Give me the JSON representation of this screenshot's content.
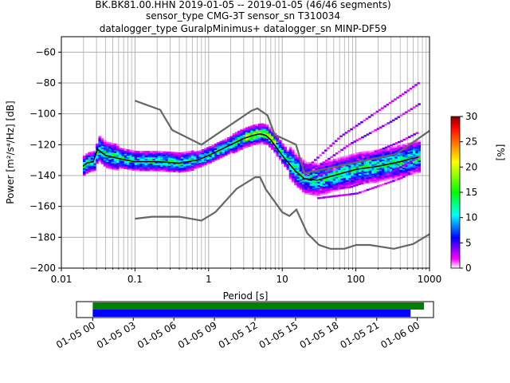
{
  "title": {
    "line1": "BK.BK81.00.HHN   2019-01-05 -- 2019-01-05  (46/46 segments)",
    "line2": "sensor_type CMG-3T sensor_sn T310034",
    "line3": "datalogger_type GuralpMinimus+ datalogger_sn MINP-DF59"
  },
  "chart_data": [
    {
      "type": "heatmap",
      "name": "ppsd",
      "xlabel": "Period [s]",
      "ylabel": "Power [m²/s⁴/Hz] [dB]",
      "xscale": "log",
      "xlim": [
        0.01,
        1000
      ],
      "ylim": [
        -200,
        -50
      ],
      "x_ticks": [
        0.01,
        0.1,
        1,
        10,
        100,
        1000
      ],
      "x_tick_labels": [
        "0.01",
        "0.1",
        "1",
        "10",
        "100",
        "1000"
      ],
      "y_ticks": [
        -200,
        -180,
        -160,
        -140,
        -120,
        -100,
        -80,
        -60
      ],
      "grid": true,
      "colorbar": {
        "label": "[%]",
        "range": [
          0,
          30
        ],
        "ticks": [
          0,
          5,
          10,
          15,
          20,
          25,
          30
        ],
        "colors": [
          "#ffffff",
          "#ff00ff",
          "#0000ff",
          "#00ffff",
          "#00ff00",
          "#ffff00",
          "#ff0000",
          "#800000"
        ]
      },
      "mode_curve": [
        [
          0.0196,
          -134
        ],
        [
          0.022,
          -132
        ],
        [
          0.027,
          -131
        ],
        [
          0.031,
          -123
        ],
        [
          0.04,
          -127
        ],
        [
          0.06,
          -129
        ],
        [
          0.1,
          -131
        ],
        [
          0.2,
          -131
        ],
        [
          0.4,
          -132
        ],
        [
          0.7,
          -130
        ],
        [
          1,
          -127
        ],
        [
          2,
          -120
        ],
        [
          3,
          -116
        ],
        [
          4,
          -114
        ],
        [
          5,
          -113
        ],
        [
          6,
          -114
        ],
        [
          7,
          -117
        ],
        [
          10,
          -127
        ],
        [
          15,
          -137
        ],
        [
          20,
          -142
        ],
        [
          30,
          -143
        ],
        [
          50,
          -140
        ],
        [
          100,
          -136
        ],
        [
          200,
          -134
        ],
        [
          400,
          -131
        ],
        [
          700,
          -128
        ]
      ],
      "nhnm": [
        [
          0.1,
          -91.5
        ],
        [
          0.22,
          -97.4
        ],
        [
          0.32,
          -110.5
        ],
        [
          0.8,
          -120
        ],
        [
          3.8,
          -98
        ],
        [
          4.6,
          -96.5
        ],
        [
          6.3,
          -101
        ],
        [
          7.9,
          -113.5
        ],
        [
          15.4,
          -120
        ],
        [
          20,
          -138.5
        ],
        [
          354.8,
          -126
        ],
        [
          1000,
          -111
        ]
      ],
      "nlnm": [
        [
          0.1,
          -168
        ],
        [
          0.17,
          -166.7
        ],
        [
          0.4,
          -166.7
        ],
        [
          0.8,
          -169.2
        ],
        [
          1.24,
          -163.7
        ],
        [
          2.4,
          -148.6
        ],
        [
          4.3,
          -141.1
        ],
        [
          5.0,
          -141.1
        ],
        [
          6.0,
          -149
        ],
        [
          10,
          -163.8
        ],
        [
          12.5,
          -166.2
        ],
        [
          15.6,
          -162.1
        ],
        [
          21.9,
          -177.5
        ],
        [
          31.6,
          -185
        ],
        [
          45,
          -187.5
        ],
        [
          70,
          -187.5
        ],
        [
          101,
          -185
        ],
        [
          154,
          -185
        ],
        [
          328,
          -187.5
        ],
        [
          600,
          -184.4
        ],
        [
          1000,
          -178
        ]
      ],
      "min_period": 0.0196,
      "max_period": 710
    },
    {
      "type": "timeline",
      "name": "data-coverage",
      "x_tick_labels": [
        "01-05 00",
        "01-05 03",
        "01-05 06",
        "01-05 09",
        "01-05 12",
        "01-05 15",
        "01-05 18",
        "01-05 21",
        "01-06 00"
      ],
      "x_tick_hours": [
        0,
        3,
        6,
        9,
        12,
        15,
        18,
        21,
        24
      ],
      "xlim_hours": [
        -1.2,
        25.2
      ],
      "bars": [
        {
          "color": "#008000",
          "start_hour": 0.0,
          "end_hour": 24.5
        },
        {
          "color": "#0000ff",
          "start_hour": 0.0,
          "end_hour": 23.5
        }
      ]
    }
  ]
}
